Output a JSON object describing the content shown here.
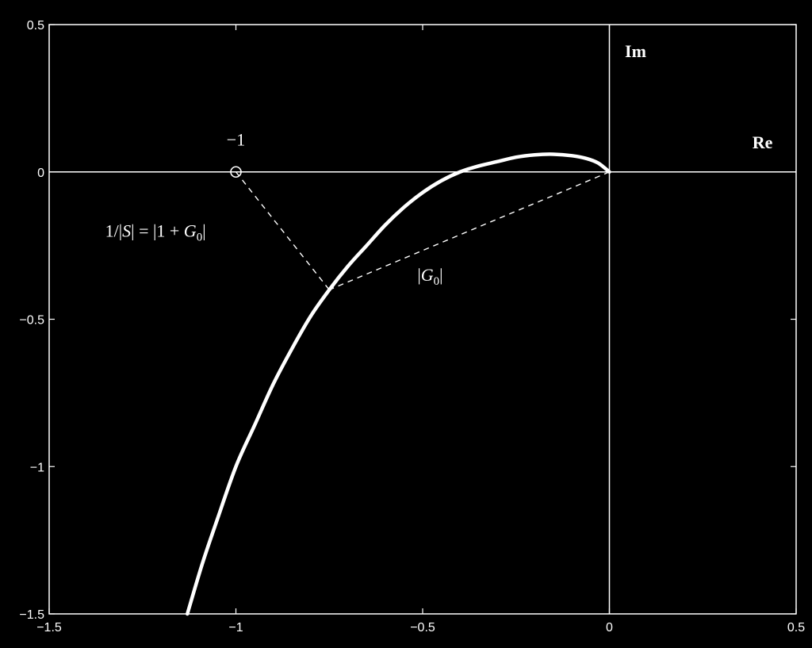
{
  "chart_data": {
    "type": "line",
    "title": "",
    "xlabel": "",
    "ylabel": "",
    "xlim": [
      -1.5,
      0.5
    ],
    "ylim": [
      -1.5,
      0.5
    ],
    "grid": false,
    "x_ticks": [
      -1.5,
      -1,
      -0.5,
      0,
      0.5
    ],
    "y_ticks": [
      -1.5,
      -1,
      -0.5,
      0,
      0.5
    ],
    "x_tick_labels": [
      "-1.5",
      "-1",
      "-0.5",
      "0",
      "0.5"
    ],
    "y_tick_labels": [
      "-1.5",
      "-1",
      "-0.5",
      "0",
      "0.5"
    ],
    "series": [
      {
        "role": "nyquist-curve",
        "color": "#ffffff",
        "x": [
          -1.13,
          -1.09,
          -1.05,
          -1.0,
          -0.95,
          -0.9,
          -0.85,
          -0.8,
          -0.75,
          -0.7,
          -0.65,
          -0.6,
          -0.55,
          -0.5,
          -0.45,
          -0.4,
          -0.35,
          -0.3,
          -0.25,
          -0.2,
          -0.15,
          -0.1,
          -0.06,
          -0.03,
          0.0
        ],
        "y": [
          -1.5,
          -1.33,
          -1.18,
          -1.0,
          -0.86,
          -0.72,
          -0.6,
          -0.49,
          -0.4,
          -0.32,
          -0.25,
          -0.18,
          -0.12,
          -0.07,
          -0.03,
          0.0,
          0.02,
          0.035,
          0.05,
          0.058,
          0.06,
          0.055,
          0.045,
          0.03,
          0.0
        ]
      }
    ],
    "point": {
      "role": "critical-point",
      "x": -1,
      "y": 0
    },
    "curve_point": {
      "x": -0.75,
      "y": -0.4
    },
    "dashed_segments": [
      {
        "role": "sensitivity-distance",
        "from": [
          -1,
          0
        ],
        "to": [
          -0.75,
          -0.4
        ]
      },
      {
        "role": "loop-gain-magnitude",
        "from": [
          0,
          0
        ],
        "to": [
          -0.75,
          -0.4
        ]
      }
    ],
    "annotations": [
      {
        "role": "imag-axis",
        "text": "Im",
        "x": 0.07,
        "y": 0.39,
        "bold": true
      },
      {
        "role": "real-axis",
        "text": "Re",
        "x": 0.41,
        "y": 0.08,
        "bold": true
      },
      {
        "role": "minus-one",
        "text": "−1",
        "x": -1.0,
        "y": 0.09,
        "bold": false
      },
      {
        "role": "sensitivity",
        "text": "1/|S| = |1 + G0|",
        "x": -1.35,
        "y": -0.22,
        "bold": false
      },
      {
        "role": "g0-magnitude",
        "text": "|G0|",
        "x": -0.48,
        "y": -0.37,
        "bold": false
      }
    ]
  }
}
